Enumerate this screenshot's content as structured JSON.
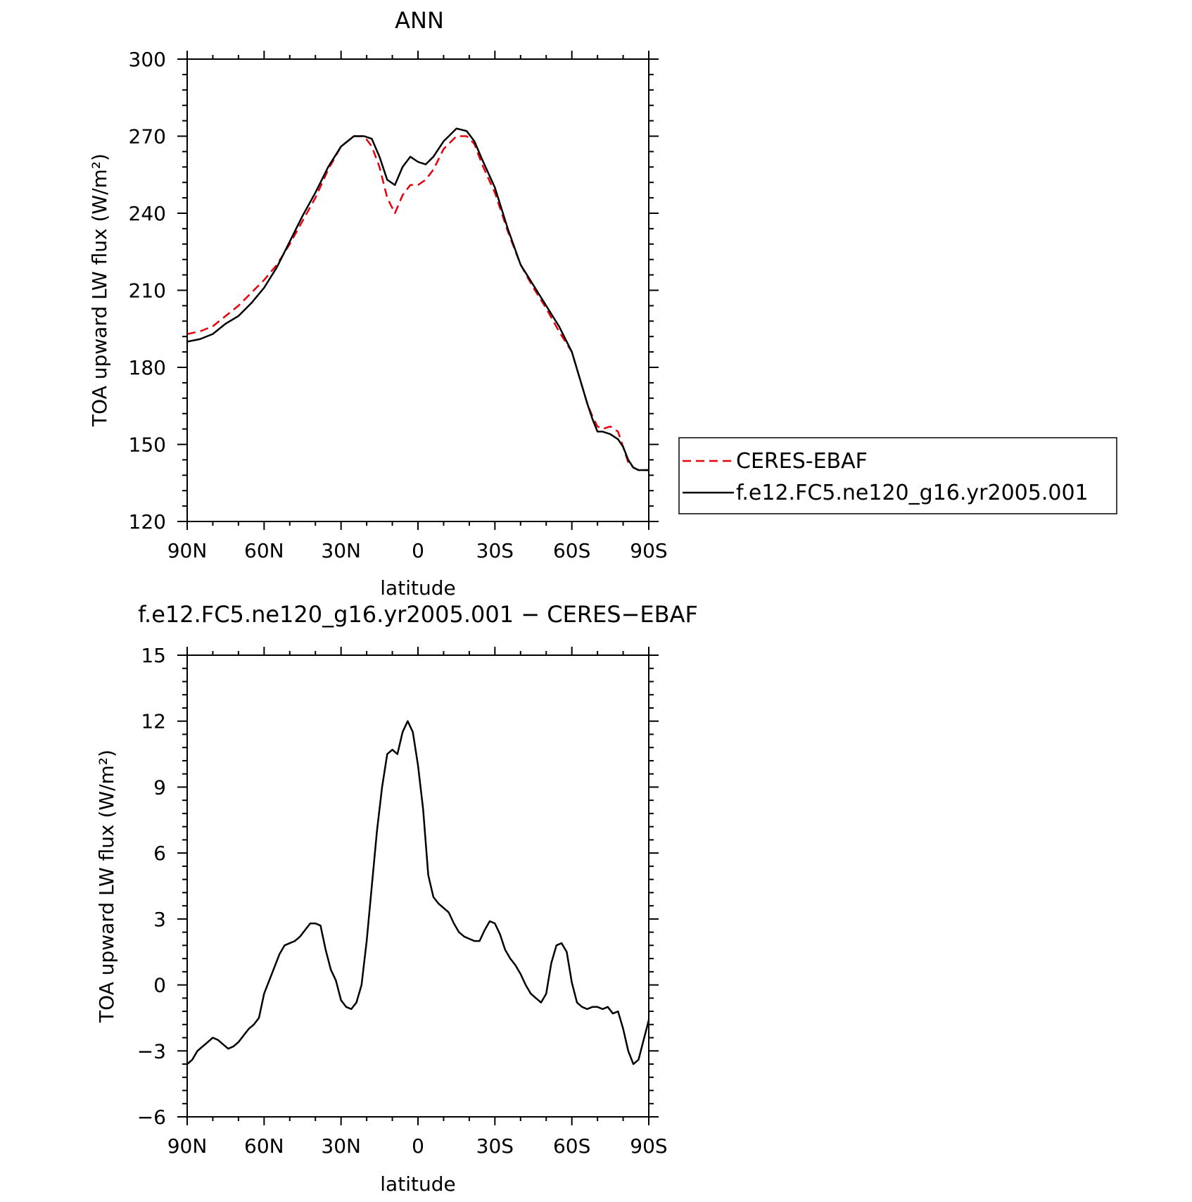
{
  "chart_data": [
    {
      "type": "line",
      "title": "ANN",
      "xlabel": "latitude",
      "ylabel": "TOA upward LW flux (W/m²)",
      "xlim": [
        90,
        -90
      ],
      "ylim": [
        120,
        300
      ],
      "xticks": [
        90,
        60,
        30,
        0,
        -30,
        -60,
        -90
      ],
      "xtick_labels": [
        "90N",
        "60N",
        "30N",
        "0",
        "30S",
        "60S",
        "90S"
      ],
      "yticks": [
        120,
        150,
        180,
        210,
        240,
        270,
        300
      ],
      "ytick_labels": [
        "120",
        "150",
        "180",
        "210",
        "240",
        "270",
        "300"
      ],
      "legend": "right, outside",
      "series": [
        {
          "name": "CERES-EBAF",
          "color": "#e8000b",
          "dash": "dashed",
          "x": [
            90,
            85,
            80,
            75,
            70,
            65,
            60,
            55,
            50,
            45,
            40,
            35,
            30,
            25,
            21,
            18,
            15,
            12,
            9,
            6,
            3,
            0,
            -3,
            -6,
            -10,
            -15,
            -19,
            -22,
            -25,
            -30,
            -35,
            -40,
            -45,
            -50,
            -55,
            -60,
            -63,
            -66,
            -68,
            -70,
            -72,
            -75,
            -78,
            -80,
            -82,
            -84,
            -86,
            -88,
            -90
          ],
          "y": [
            193,
            194,
            196,
            200,
            204,
            209,
            214,
            220,
            228,
            237,
            246,
            257,
            266,
            270,
            270,
            266,
            258,
            246,
            240,
            247,
            251,
            251,
            253,
            257,
            265,
            270,
            270,
            267,
            259,
            248,
            233,
            220,
            211,
            203,
            194,
            186,
            176,
            166,
            161,
            157,
            156,
            157,
            155,
            149,
            143,
            141,
            140,
            140,
            140
          ]
        },
        {
          "name": "f.e12.FC5.ne120_g16.yr2005.001",
          "color": "#000000",
          "dash": "solid",
          "x": [
            90,
            85,
            80,
            75,
            70,
            65,
            60,
            55,
            50,
            45,
            40,
            35,
            30,
            25,
            21,
            18,
            15,
            12,
            9,
            6,
            3,
            0,
            -3,
            -6,
            -10,
            -15,
            -19,
            -22,
            -25,
            -30,
            -35,
            -40,
            -45,
            -50,
            -55,
            -60,
            -63,
            -66,
            -68,
            -70,
            -72,
            -75,
            -78,
            -80,
            -82,
            -84,
            -86,
            -88,
            -90
          ],
          "y": [
            190,
            191,
            193,
            197,
            200,
            205,
            211,
            219,
            229,
            239,
            248,
            258,
            266,
            270,
            270,
            269,
            262,
            253,
            251,
            258,
            262,
            260,
            259,
            262,
            268,
            273,
            272,
            268,
            261,
            250,
            234,
            220,
            212,
            204,
            196,
            186,
            176,
            166,
            160,
            155,
            155,
            154,
            152,
            149,
            144,
            141,
            140,
            140,
            140
          ]
        }
      ]
    },
    {
      "type": "line",
      "title": "f.e12.FC5.ne120_g16.yr2005.001 − CERES−EBAF",
      "xlabel": "latitude",
      "ylabel": "TOA upward LW flux (W/m²)",
      "xlim": [
        90,
        -90
      ],
      "ylim": [
        -6,
        15
      ],
      "xticks": [
        90,
        60,
        30,
        0,
        -30,
        -60,
        -90
      ],
      "xtick_labels": [
        "90N",
        "60N",
        "30N",
        "0",
        "30S",
        "60S",
        "90S"
      ],
      "yticks": [
        -6,
        -3,
        0,
        3,
        6,
        9,
        12,
        15
      ],
      "ytick_labels": [
        "−6",
        "−3",
        "0",
        "3",
        "6",
        "9",
        "12",
        "15"
      ],
      "series": [
        {
          "color": "#000000",
          "dash": "solid",
          "x": [
            90,
            88,
            86,
            84,
            82,
            80,
            78,
            76,
            74,
            72,
            70,
            68,
            66,
            64,
            62,
            60,
            58,
            56,
            54,
            52,
            50,
            48,
            46,
            44,
            42,
            40,
            38,
            36,
            34,
            32,
            30,
            28,
            26,
            24,
            22,
            20,
            18,
            16,
            14,
            12,
            10,
            8,
            6,
            4,
            2,
            0,
            -2,
            -4,
            -6,
            -8,
            -10,
            -12,
            -14,
            -16,
            -18,
            -20,
            -22,
            -24,
            -26,
            -28,
            -30,
            -32,
            -34,
            -36,
            -38,
            -40,
            -42,
            -44,
            -46,
            -48,
            -50,
            -52,
            -54,
            -56,
            -58,
            -60,
            -62,
            -64,
            -66,
            -68,
            -70,
            -72,
            -74,
            -76,
            -78,
            -80,
            -82,
            -84,
            -86,
            -88,
            -90
          ],
          "y": [
            -3.6,
            -3.4,
            -3.0,
            -2.8,
            -2.6,
            -2.4,
            -2.5,
            -2.7,
            -2.9,
            -2.8,
            -2.6,
            -2.3,
            -2.0,
            -1.8,
            -1.5,
            -0.4,
            0.2,
            0.8,
            1.4,
            1.8,
            1.9,
            2.0,
            2.2,
            2.5,
            2.8,
            2.8,
            2.7,
            1.6,
            0.7,
            0.2,
            -0.7,
            -1.0,
            -1.1,
            -0.8,
            0.0,
            2.0,
            4.5,
            7.0,
            9.0,
            10.5,
            10.7,
            10.5,
            11.5,
            12.0,
            11.5,
            10.0,
            8.0,
            5.0,
            4.0,
            3.7,
            3.5,
            3.3,
            2.8,
            2.4,
            2.2,
            2.1,
            2.0,
            2.0,
            2.5,
            2.9,
            2.8,
            2.3,
            1.6,
            1.2,
            0.9,
            0.5,
            0.0,
            -0.4,
            -0.6,
            -0.8,
            -0.4,
            1.0,
            1.8,
            1.9,
            1.5,
            0.1,
            -0.8,
            -1.0,
            -1.1,
            -1.0,
            -1.0,
            -1.1,
            -1.0,
            -1.3,
            -1.2,
            -2.0,
            -3.0,
            -3.6,
            -3.4,
            -2.5,
            -1.6
          ]
        }
      ]
    }
  ]
}
